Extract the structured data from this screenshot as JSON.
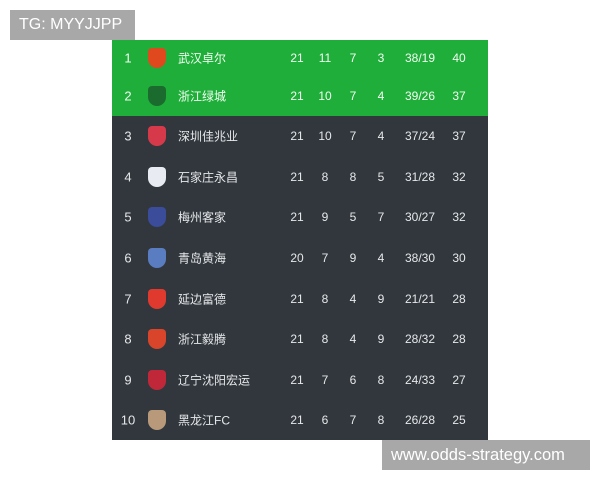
{
  "watermarks": {
    "top": "TG: MYYJJPP",
    "bottom": "www.odds-strategy.com"
  },
  "colors": {
    "promotion_row": "#1fae3a",
    "table_bg": "#31373d"
  },
  "rows": [
    {
      "rank": "1",
      "team": "武汉卓尔",
      "played": "21",
      "won": "11",
      "drawn": "7",
      "lost": "3",
      "goals": "38/19",
      "points": "40",
      "logo_color": "#e0491e",
      "highlight": true
    },
    {
      "rank": "2",
      "team": "浙江绿城",
      "played": "21",
      "won": "10",
      "drawn": "7",
      "lost": "4",
      "goals": "39/26",
      "points": "37",
      "logo_color": "#1b6b2e",
      "highlight": true
    },
    {
      "rank": "3",
      "team": "深圳佳兆业",
      "played": "21",
      "won": "10",
      "drawn": "7",
      "lost": "4",
      "goals": "37/24",
      "points": "37",
      "logo_color": "#d63a4a",
      "highlight": false
    },
    {
      "rank": "4",
      "team": "石家庄永昌",
      "played": "21",
      "won": "8",
      "drawn": "8",
      "lost": "5",
      "goals": "31/28",
      "points": "32",
      "logo_color": "#e8ecf2",
      "highlight": false
    },
    {
      "rank": "5",
      "team": "梅州客家",
      "played": "21",
      "won": "9",
      "drawn": "5",
      "lost": "7",
      "goals": "30/27",
      "points": "32",
      "logo_color": "#3a4c9a",
      "highlight": false
    },
    {
      "rank": "6",
      "team": "青岛黄海",
      "played": "20",
      "won": "7",
      "drawn": "9",
      "lost": "4",
      "goals": "38/30",
      "points": "30",
      "logo_color": "#5a7cc0",
      "highlight": false
    },
    {
      "rank": "7",
      "team": "延边富德",
      "played": "21",
      "won": "8",
      "drawn": "4",
      "lost": "9",
      "goals": "21/21",
      "points": "28",
      "logo_color": "#e03a2e",
      "highlight": false
    },
    {
      "rank": "8",
      "team": "浙江毅腾",
      "played": "21",
      "won": "8",
      "drawn": "4",
      "lost": "9",
      "goals": "28/32",
      "points": "28",
      "logo_color": "#d8452a",
      "highlight": false
    },
    {
      "rank": "9",
      "team": "辽宁沈阳宏运",
      "played": "21",
      "won": "7",
      "drawn": "6",
      "lost": "8",
      "goals": "24/33",
      "points": "27",
      "logo_color": "#c0283a",
      "highlight": false
    },
    {
      "rank": "10",
      "team": "黑龙江FC",
      "played": "21",
      "won": "6",
      "drawn": "7",
      "lost": "8",
      "goals": "26/28",
      "points": "25",
      "logo_color": "#b89a7a",
      "highlight": false
    }
  ]
}
